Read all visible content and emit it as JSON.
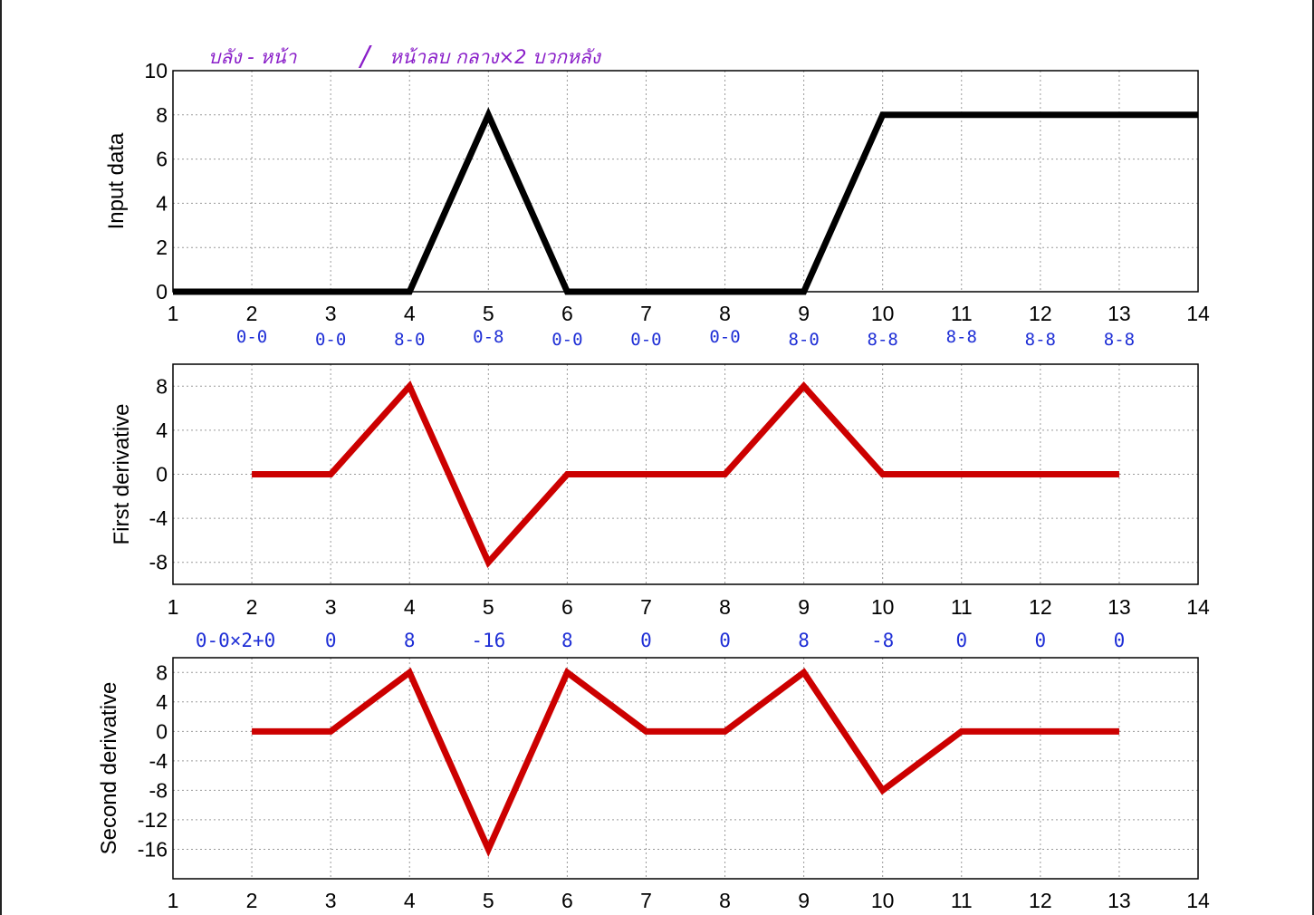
{
  "chart_data": [
    {
      "type": "line",
      "ylabel": "Input data",
      "xlim": [
        1,
        14
      ],
      "ylim": [
        0,
        10
      ],
      "xticks": [
        1,
        2,
        3,
        4,
        5,
        6,
        7,
        8,
        9,
        10,
        11,
        12,
        13,
        14
      ],
      "yticks": [
        0,
        2,
        4,
        6,
        8,
        10
      ],
      "grid": true,
      "series": [
        {
          "color": "#000000",
          "x": [
            1,
            2,
            3,
            4,
            5,
            6,
            7,
            8,
            9,
            10,
            11,
            12,
            13,
            14
          ],
          "values": [
            0,
            0,
            0,
            0,
            8,
            0,
            0,
            0,
            0,
            8,
            8,
            8,
            8,
            8
          ]
        }
      ]
    },
    {
      "type": "line",
      "ylabel": "First derivative",
      "xlim": [
        1,
        14
      ],
      "ylim": [
        -10,
        10
      ],
      "xticks": [
        1,
        2,
        3,
        4,
        5,
        6,
        7,
        8,
        9,
        10,
        11,
        12,
        13,
        14
      ],
      "yticks": [
        -8,
        -4,
        0,
        4,
        8
      ],
      "grid": true,
      "series": [
        {
          "color": "#cc0000",
          "x": [
            2,
            3,
            4,
            5,
            6,
            7,
            8,
            9,
            10,
            11,
            12,
            13
          ],
          "values": [
            0,
            0,
            8,
            -8,
            0,
            0,
            0,
            8,
            0,
            0,
            0,
            0
          ]
        }
      ]
    },
    {
      "type": "line",
      "ylabel": "Second derivative",
      "xlim": [
        1,
        14
      ],
      "ylim": [
        -20,
        10
      ],
      "xticks": [
        1,
        2,
        3,
        4,
        5,
        6,
        7,
        8,
        9,
        10,
        11,
        12,
        13,
        14
      ],
      "yticks": [
        -16,
        -12,
        -8,
        -4,
        0,
        4,
        8
      ],
      "grid": true,
      "series": [
        {
          "color": "#cc0000",
          "x": [
            2,
            3,
            4,
            5,
            6,
            7,
            8,
            9,
            10,
            11,
            12,
            13
          ],
          "values": [
            0,
            0,
            8,
            -16,
            8,
            0,
            0,
            8,
            -8,
            0,
            0,
            0
          ]
        }
      ]
    }
  ],
  "annotations": {
    "top_note_left": "บลัง - หน้า",
    "top_note_slash": "/",
    "top_note_right": "หน้าลบ กลาง×2 บวกหลัง",
    "first_diff_notes": [
      "0-0",
      "0-0",
      "8-0",
      "0-8",
      "0-0",
      "0-0",
      "0-0",
      "8-0",
      "8-8",
      "8-8",
      "8-8",
      "8-8"
    ],
    "second_diff_notes": [
      "0-0×2+0",
      "0",
      "8",
      "-16",
      "8",
      "0",
      "0",
      "8",
      "-8",
      "0",
      "0",
      "0"
    ]
  }
}
